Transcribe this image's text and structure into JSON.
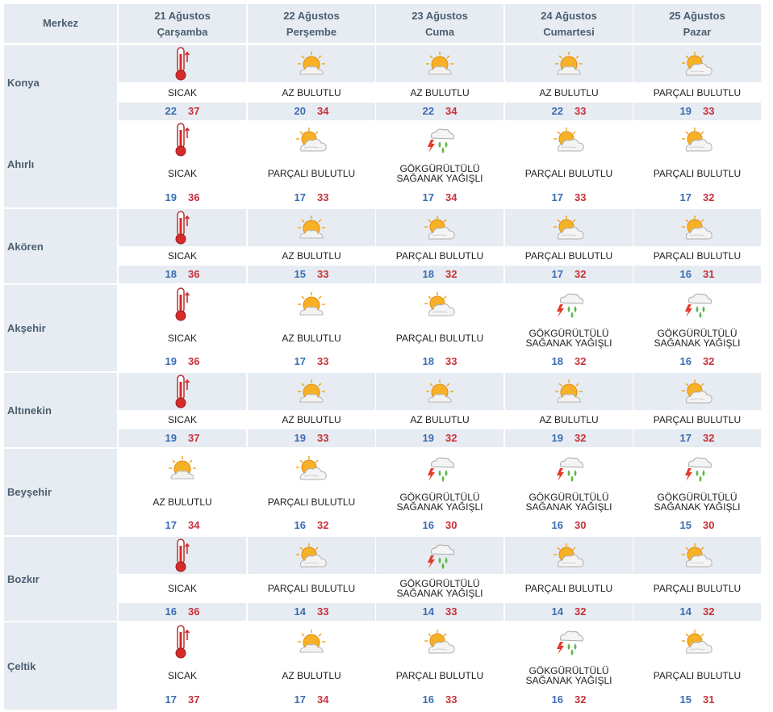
{
  "header": {
    "merkez": "Merkez",
    "days": [
      {
        "date": "21 Ağustos",
        "weekday": "Çarşamba"
      },
      {
        "date": "22 Ağustos",
        "weekday": "Perşembe"
      },
      {
        "date": "23 Ağustos",
        "weekday": "Cuma"
      },
      {
        "date": "24 Ağustos",
        "weekday": "Cumartesi"
      },
      {
        "date": "25 Ağustos",
        "weekday": "Pazar"
      }
    ]
  },
  "colors": {
    "band": "#e6ecf1",
    "low": "#3b6cb4",
    "high": "#c8303a",
    "header_text": "#4b5e70"
  },
  "icons": {
    "SICAK": "thermometer-icon",
    "AZ BULUTLU": "sun-with-cloud-icon",
    "PARÇALI BULUTLU": "partly-cloudy-icon",
    "GÖKGÜRÜLTÜLÜ SAĞANAK YAĞIŞLI": "thunderstorm-rain-icon"
  },
  "rows": [
    {
      "city": "Konya",
      "days": [
        {
          "cond": "SICAK",
          "lo": "22",
          "hi": "37"
        },
        {
          "cond": "AZ BULUTLU",
          "lo": "20",
          "hi": "34"
        },
        {
          "cond": "AZ BULUTLU",
          "lo": "22",
          "hi": "34"
        },
        {
          "cond": "AZ BULUTLU",
          "lo": "22",
          "hi": "33"
        },
        {
          "cond": "PARÇALI BULUTLU",
          "lo": "19",
          "hi": "33"
        }
      ]
    },
    {
      "city": "Ahırlı",
      "days": [
        {
          "cond": "SICAK",
          "lo": "19",
          "hi": "36"
        },
        {
          "cond": "PARÇALI BULUTLU",
          "lo": "17",
          "hi": "33"
        },
        {
          "cond": "GÖKGÜRÜLTÜLÜ SAĞANAK YAĞIŞLI",
          "lo": "17",
          "hi": "34"
        },
        {
          "cond": "PARÇALI BULUTLU",
          "lo": "17",
          "hi": "33"
        },
        {
          "cond": "PARÇALI BULUTLU",
          "lo": "17",
          "hi": "32"
        }
      ]
    },
    {
      "city": "Akören",
      "days": [
        {
          "cond": "SICAK",
          "lo": "18",
          "hi": "36"
        },
        {
          "cond": "AZ BULUTLU",
          "lo": "15",
          "hi": "33"
        },
        {
          "cond": "PARÇALI BULUTLU",
          "lo": "18",
          "hi": "32"
        },
        {
          "cond": "PARÇALI BULUTLU",
          "lo": "17",
          "hi": "32"
        },
        {
          "cond": "PARÇALI BULUTLU",
          "lo": "16",
          "hi": "31"
        }
      ]
    },
    {
      "city": "Akşehir",
      "days": [
        {
          "cond": "SICAK",
          "lo": "19",
          "hi": "36"
        },
        {
          "cond": "AZ BULUTLU",
          "lo": "17",
          "hi": "33"
        },
        {
          "cond": "PARÇALI BULUTLU",
          "lo": "18",
          "hi": "33"
        },
        {
          "cond": "GÖKGÜRÜLTÜLÜ SAĞANAK YAĞIŞLI",
          "lo": "18",
          "hi": "32"
        },
        {
          "cond": "GÖKGÜRÜLTÜLÜ SAĞANAK YAĞIŞLI",
          "lo": "16",
          "hi": "32"
        }
      ]
    },
    {
      "city": "Altınekin",
      "days": [
        {
          "cond": "SICAK",
          "lo": "19",
          "hi": "37"
        },
        {
          "cond": "AZ BULUTLU",
          "lo": "19",
          "hi": "33"
        },
        {
          "cond": "AZ BULUTLU",
          "lo": "19",
          "hi": "32"
        },
        {
          "cond": "AZ BULUTLU",
          "lo": "19",
          "hi": "32"
        },
        {
          "cond": "PARÇALI BULUTLU",
          "lo": "17",
          "hi": "32"
        }
      ]
    },
    {
      "city": "Beyşehir",
      "days": [
        {
          "cond": "AZ BULUTLU",
          "lo": "17",
          "hi": "34"
        },
        {
          "cond": "PARÇALI BULUTLU",
          "lo": "16",
          "hi": "32"
        },
        {
          "cond": "GÖKGÜRÜLTÜLÜ SAĞANAK YAĞIŞLI",
          "lo": "16",
          "hi": "30"
        },
        {
          "cond": "GÖKGÜRÜLTÜLÜ SAĞANAK YAĞIŞLI",
          "lo": "16",
          "hi": "30"
        },
        {
          "cond": "GÖKGÜRÜLTÜLÜ SAĞANAK YAĞIŞLI",
          "lo": "15",
          "hi": "30"
        }
      ]
    },
    {
      "city": "Bozkır",
      "days": [
        {
          "cond": "SICAK",
          "lo": "16",
          "hi": "36"
        },
        {
          "cond": "PARÇALI BULUTLU",
          "lo": "14",
          "hi": "33"
        },
        {
          "cond": "GÖKGÜRÜLTÜLÜ SAĞANAK YAĞIŞLI",
          "lo": "14",
          "hi": "33"
        },
        {
          "cond": "PARÇALI BULUTLU",
          "lo": "14",
          "hi": "32"
        },
        {
          "cond": "PARÇALI BULUTLU",
          "lo": "14",
          "hi": "32"
        }
      ]
    },
    {
      "city": "Çeltik",
      "days": [
        {
          "cond": "SICAK",
          "lo": "17",
          "hi": "37"
        },
        {
          "cond": "AZ BULUTLU",
          "lo": "17",
          "hi": "34"
        },
        {
          "cond": "PARÇALI BULUTLU",
          "lo": "16",
          "hi": "33"
        },
        {
          "cond": "GÖKGÜRÜLTÜLÜ SAĞANAK YAĞIŞLI",
          "lo": "16",
          "hi": "32"
        },
        {
          "cond": "PARÇALI BULUTLU",
          "lo": "15",
          "hi": "31"
        }
      ]
    }
  ]
}
